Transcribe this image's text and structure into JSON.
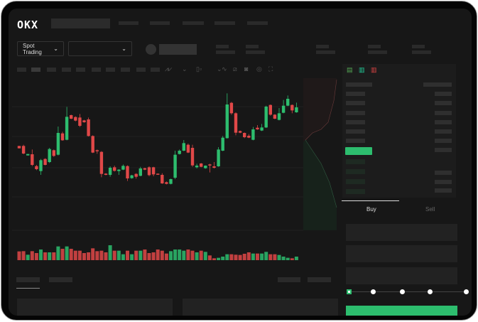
{
  "header": {
    "logo": "OKX"
  },
  "market": {
    "mode_label": "Spot Trading"
  },
  "trade": {
    "buy_label": "Buy",
    "sell_label": "Sell",
    "active_tab": "Buy",
    "leverage_levels": 5
  },
  "colors": {
    "up": "#2dbd6e",
    "down": "#e04848",
    "background": "#171717"
  },
  "chart_data": {
    "type": "candlestick",
    "candles": [
      [
        200,
        200,
        190,
        190
      ],
      [
        200,
        205,
        165,
        168
      ],
      [
        160,
        166,
        160,
        166
      ],
      [
        165,
        185,
        115,
        120
      ],
      [
        115,
        120,
        98,
        102
      ],
      [
        94,
        145,
        78,
        140
      ],
      [
        145,
        148,
        118,
        120
      ],
      [
        132,
        192,
        128,
        187
      ],
      [
        182,
        185,
        154,
        158
      ],
      [
        163,
        282,
        160,
        255
      ],
      [
        253,
        260,
        222,
        224
      ],
      [
        226,
        365,
        224,
        323
      ],
      [
        330,
        332,
        313,
        315
      ],
      [
        322,
        325,
        304,
        307
      ],
      [
        320,
        335,
        280,
        285
      ],
      [
        308,
        310,
        298,
        300
      ],
      [
        312,
        320,
        240,
        242
      ],
      [
        242,
        245,
        170,
        172
      ],
      [
        182,
        185,
        167,
        178
      ],
      [
        175,
        178,
        68,
        82
      ],
      [
        83,
        85,
        76,
        78
      ],
      [
        78,
        114,
        70,
        108
      ],
      [
        110,
        117,
        92,
        95
      ],
      [
        94,
        102,
        78,
        100
      ],
      [
        100,
        122,
        98,
        116
      ],
      [
        115,
        118,
        52,
        63
      ],
      [
        64,
        78,
        62,
        76
      ],
      [
        82,
        85,
        62,
        70
      ],
      [
        74,
        112,
        72,
        105
      ],
      [
        106,
        108,
        98,
        100
      ],
      [
        110,
        114,
        72,
        77
      ],
      [
        110,
        112,
        72,
        80
      ],
      [
        83,
        84,
        78,
        79
      ],
      [
        78,
        85,
        40,
        42
      ],
      [
        47,
        50,
        38,
        40
      ],
      [
        40,
        62,
        38,
        60
      ],
      [
        66,
        180,
        60,
        163
      ],
      [
        166,
        185,
        164,
        180
      ],
      [
        180,
        225,
        178,
        212
      ],
      [
        205,
        210,
        170,
        172
      ],
      [
        192,
        205,
        112,
        118
      ],
      [
        110,
        125,
        105,
        117
      ],
      [
        126,
        128,
        110,
        112
      ],
      [
        106,
        118,
        104,
        117
      ],
      [
        122,
        125,
        88,
        118
      ],
      [
        114,
        132,
        105,
        108
      ],
      [
        114,
        195,
        112,
        185
      ],
      [
        180,
        242,
        178,
        235
      ],
      [
        233,
        422,
        231,
        375
      ],
      [
        382,
        386,
        332,
        338
      ],
      [
        338,
        342,
        245,
        256
      ],
      [
        263,
        265,
        254,
        256
      ],
      [
        255,
        257,
        233,
        237
      ],
      [
        243,
        250,
        233,
        235
      ],
      [
        226,
        280,
        224,
        270
      ],
      [
        277,
        288,
        268,
        270
      ],
      [
        265,
        293,
        263,
        278
      ],
      [
        278,
        370,
        276,
        366
      ],
      [
        373,
        375,
        328,
        332
      ],
      [
        332,
        334,
        313,
        315
      ],
      [
        310,
        360,
        308,
        338
      ],
      [
        340,
        394,
        338,
        370
      ],
      [
        370,
        413,
        368,
        399
      ],
      [
        373,
        375,
        338,
        350
      ],
      [
        342,
        383,
        340,
        363
      ]
    ],
    "volumes": [
      37,
      38,
      23,
      38,
      30,
      45,
      33,
      33,
      33,
      58,
      48,
      58,
      48,
      40,
      40,
      30,
      33,
      50,
      38,
      40,
      33,
      63,
      40,
      40,
      25,
      40,
      25,
      40,
      40,
      45,
      30,
      33,
      45,
      40,
      28,
      38,
      45,
      45,
      40,
      45,
      40,
      33,
      40,
      35,
      20,
      8,
      10,
      15,
      25,
      25,
      23,
      22,
      27,
      33,
      28,
      28,
      28,
      35,
      25,
      25,
      22,
      15,
      10,
      8,
      15
    ]
  }
}
